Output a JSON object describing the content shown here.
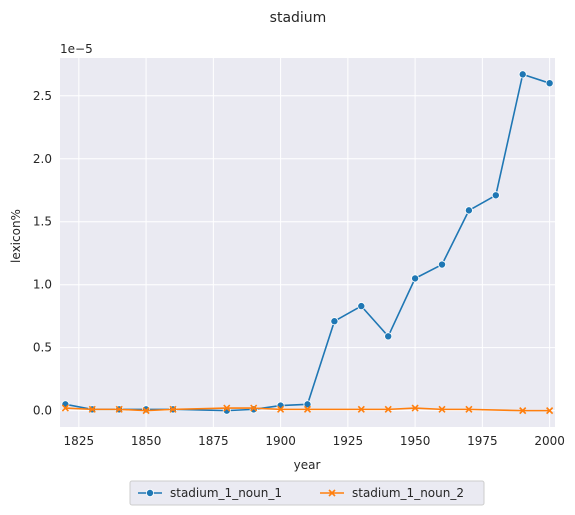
{
  "chart_data": {
    "type": "line",
    "title": "stadium",
    "xlabel": "year",
    "ylabel": "lexicon%",
    "y_scale_note": "1e−5",
    "y_multiplier": 1e-05,
    "xlim": [
      1818,
      2002
    ],
    "ylim": [
      -0.13,
      2.8
    ],
    "x_ticks": [
      1825,
      1850,
      1875,
      1900,
      1925,
      1950,
      1975,
      2000
    ],
    "y_ticks": [
      0.0,
      0.5,
      1.0,
      1.5,
      2.0,
      2.5
    ],
    "y_tick_labels": [
      "0.0",
      "0.5",
      "1.0",
      "1.5",
      "2.0",
      "2.5"
    ],
    "grid": true,
    "legend_placement": "bottom-center",
    "background_color": "#eaeaf2",
    "series": [
      {
        "name": "stadium_1_noun_1",
        "color": "#1f77b4",
        "marker": "circle",
        "x": [
          1820,
          1830,
          1840,
          1850,
          1860,
          1880,
          1890,
          1900,
          1910,
          1920,
          1930,
          1940,
          1950,
          1960,
          1970,
          1980,
          1990,
          2000
        ],
        "y": [
          0.05,
          0.01,
          0.01,
          0.01,
          0.01,
          0.0,
          0.01,
          0.04,
          0.05,
          0.71,
          0.83,
          0.59,
          1.05,
          1.16,
          1.59,
          1.71,
          2.67,
          2.6
        ]
      },
      {
        "name": "stadium_1_noun_2",
        "color": "#ff7f0e",
        "marker": "x",
        "x": [
          1820,
          1830,
          1840,
          1850,
          1860,
          1880,
          1890,
          1900,
          1910,
          1930,
          1940,
          1950,
          1960,
          1970,
          1990,
          2000
        ],
        "y": [
          0.02,
          0.01,
          0.01,
          0.0,
          0.01,
          0.02,
          0.02,
          0.01,
          0.01,
          0.01,
          0.01,
          0.02,
          0.01,
          0.01,
          0.0,
          0.0
        ]
      }
    ]
  }
}
